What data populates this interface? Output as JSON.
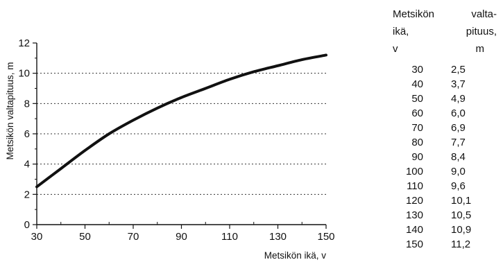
{
  "chart_data": {
    "type": "line",
    "xlabel": "Metsikön ikä, v",
    "ylabel": "Metsikön valtapituus, m",
    "xlim": [
      30,
      150
    ],
    "ylim": [
      0,
      12
    ],
    "x_ticks": [
      "30",
      "50",
      "70",
      "90",
      "110",
      "130",
      "150"
    ],
    "y_ticks": [
      "0",
      "2",
      "4",
      "6",
      "8",
      "10",
      "12"
    ],
    "grid": "horizontal dotted",
    "series": [
      {
        "x": [
          30,
          40,
          50,
          60,
          70,
          80,
          90,
          100,
          110,
          120,
          130,
          140,
          150
        ],
        "values": [
          2.5,
          3.7,
          4.9,
          6.0,
          6.9,
          7.7,
          8.4,
          9.0,
          9.6,
          10.1,
          10.5,
          10.9,
          11.2
        ]
      }
    ]
  },
  "table": {
    "header": [
      [
        "Metsikön",
        "valta-"
      ],
      [
        "ikä,",
        "pituus,"
      ],
      [
        "v",
        "m"
      ]
    ],
    "rows": [
      [
        "30",
        "2,5"
      ],
      [
        "40",
        "3,7"
      ],
      [
        "50",
        "4,9"
      ],
      [
        "60",
        "6,0"
      ],
      [
        "70",
        "6,9"
      ],
      [
        "80",
        "7,7"
      ],
      [
        "90",
        "8,4"
      ],
      [
        "100",
        "9,0"
      ],
      [
        "110",
        "9,6"
      ],
      [
        "120",
        "10,1"
      ],
      [
        "130",
        "10,5"
      ],
      [
        "140",
        "10,9"
      ],
      [
        "150",
        "11,2"
      ]
    ]
  }
}
